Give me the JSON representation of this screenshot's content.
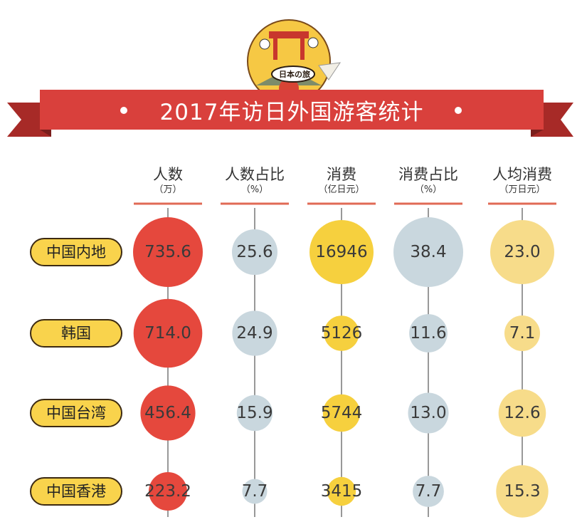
{
  "title": "2017年访日外国游客统计",
  "logo_text": "日本の旅",
  "colors": {
    "banner": "#d9403c",
    "banner_dark": "#a72a27",
    "visitors": "#e5483d",
    "visitor_share": "#c9d7de",
    "spending": "#f6d03e",
    "spending_share": "#c9d7de",
    "per_capita": "#f7dc8a",
    "rule": "#e06a55",
    "label_bg": "#f9d34c"
  },
  "chart_data": {
    "type": "bubble-table",
    "title": "2017年访日外国游客统计",
    "columns": [
      {
        "key": "visitors",
        "name": "人数",
        "unit": "（万）"
      },
      {
        "key": "visitor_share",
        "name": "人数占比",
        "unit": "（%）"
      },
      {
        "key": "spending",
        "name": "消费",
        "unit": "（亿日元）"
      },
      {
        "key": "spending_share",
        "name": "消费占比",
        "unit": "（%）"
      },
      {
        "key": "per_capita",
        "name": "人均消费",
        "unit": "（万日元）"
      }
    ],
    "rows": [
      {
        "label": "中国内地",
        "values": [
          "735.6",
          "25.6",
          "16946",
          "38.4",
          "23.0"
        ]
      },
      {
        "label": "韩国",
        "values": [
          "714.0",
          "24.9",
          "5126",
          "11.6",
          "7.1"
        ]
      },
      {
        "label": "中国台湾",
        "values": [
          "456.4",
          "15.9",
          "5744",
          "13.0",
          "12.6"
        ]
      },
      {
        "label": "中国香港",
        "values": [
          "223.2",
          "7.7",
          "3415",
          "7.7",
          "15.3"
        ]
      }
    ]
  }
}
